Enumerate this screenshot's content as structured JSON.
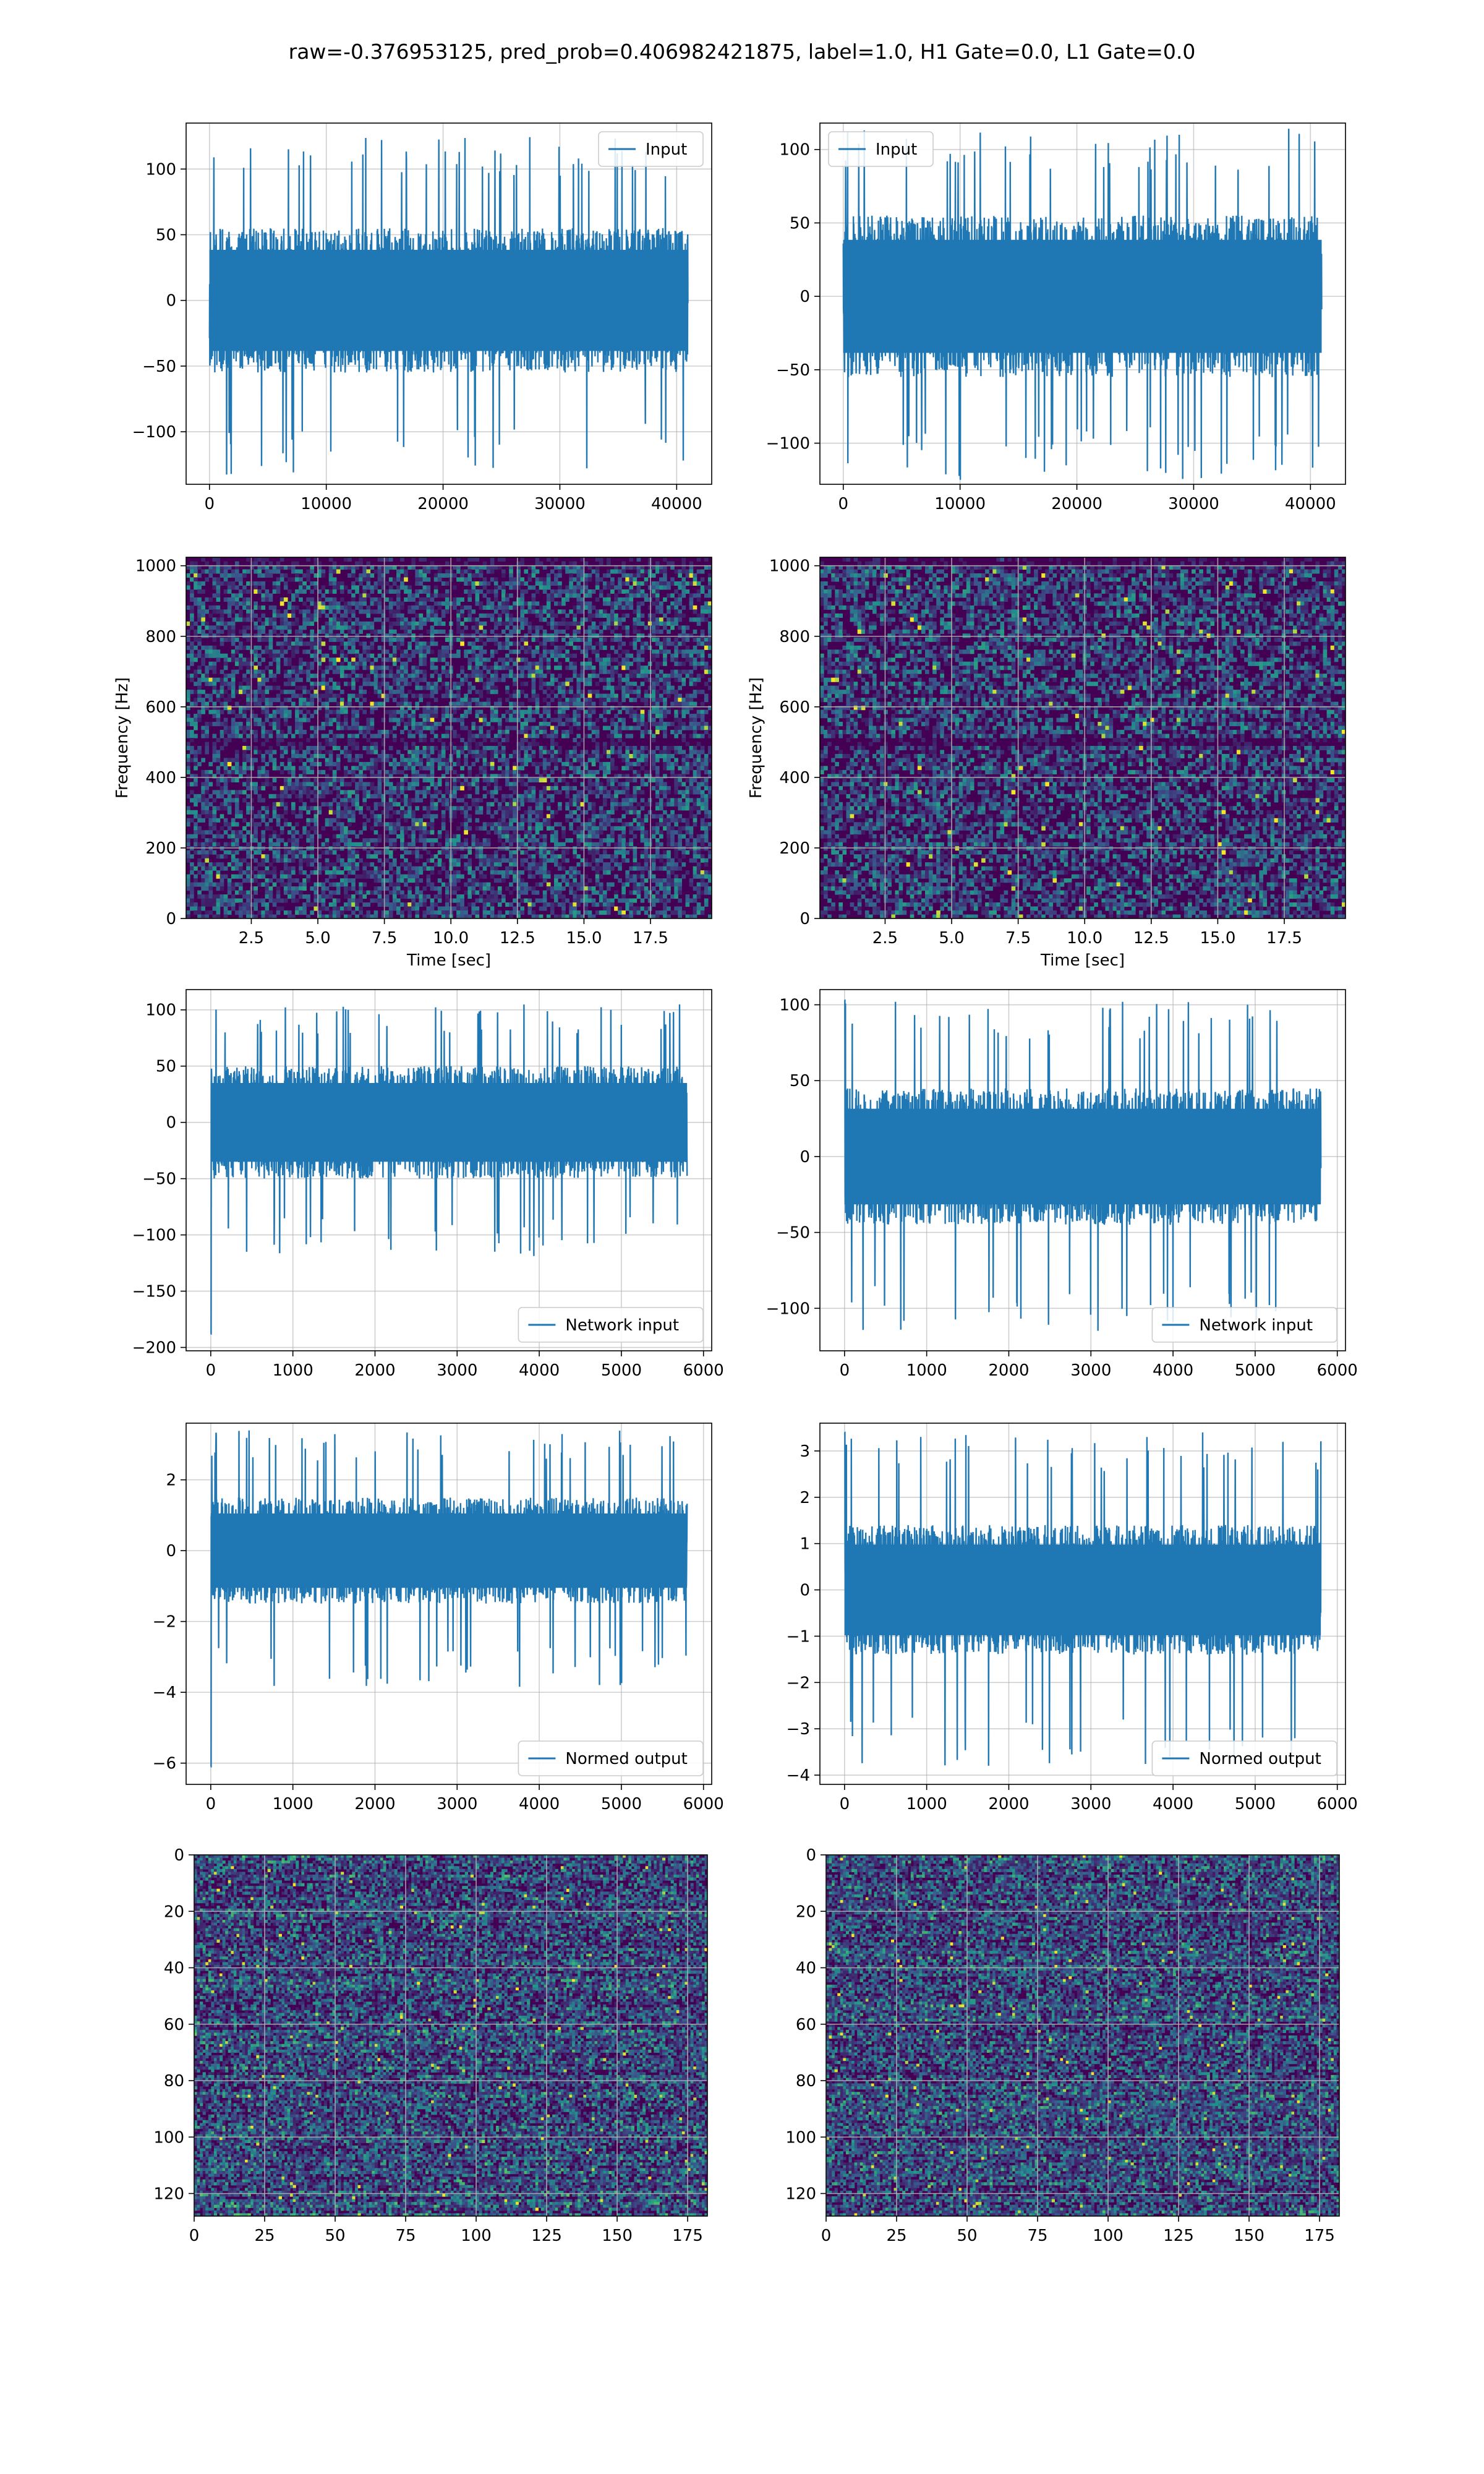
{
  "figure": {
    "title": "raw=-0.376953125, pred_prob=0.406982421875, label=1.0, H1 Gate=0.0, L1 Gate=0.0"
  },
  "colors": {
    "series": "#1f77b4",
    "grid": "#b0b0b0",
    "viridis_dark": "#440154",
    "viridis_mid": "#3b528b",
    "viridis_teal": "#21918c",
    "viridis_light": "#5ec962",
    "viridis_bright": "#fde725"
  },
  "chart_data": [
    {
      "id": "h1-input",
      "type": "line",
      "legend": "Input",
      "legend_loc": "upper right",
      "xlim": [
        -2000,
        43000
      ],
      "ylim": [
        -140,
        135
      ],
      "xticks": [
        0,
        10000,
        20000,
        30000,
        40000
      ],
      "yticks": [
        -100,
        -50,
        0,
        50,
        100
      ],
      "xticklabels": [
        "0",
        "10000",
        "20000",
        "30000",
        "40000"
      ],
      "yticklabels": [
        "−100",
        "−50",
        "0",
        "50",
        "100"
      ],
      "grid": true,
      "xlabel": "",
      "ylabel": "",
      "signal": {
        "x_start": 0,
        "x_end": 40960,
        "body_amplitude": 55,
        "peak_max": 125,
        "peak_min": -133
      }
    },
    {
      "id": "l1-input",
      "type": "line",
      "legend": "Input",
      "legend_loc": "upper left",
      "xlim": [
        -2000,
        43000
      ],
      "ylim": [
        -128,
        118
      ],
      "xticks": [
        0,
        10000,
        20000,
        30000,
        40000
      ],
      "yticks": [
        -100,
        -50,
        0,
        50,
        100
      ],
      "xticklabels": [
        "0",
        "10000",
        "20000",
        "30000",
        "40000"
      ],
      "yticklabels": [
        "−100",
        "−50",
        "0",
        "50",
        "100"
      ],
      "grid": true,
      "xlabel": "",
      "ylabel": "",
      "signal": {
        "x_start": 0,
        "x_end": 40960,
        "body_amplitude": 55,
        "peak_max": 115,
        "peak_min": -125
      }
    },
    {
      "id": "h1-spectrogram",
      "type": "heatmap",
      "xlim": [
        0.05,
        19.8
      ],
      "ylim": [
        0,
        1024
      ],
      "xticks": [
        2.5,
        5.0,
        7.5,
        10.0,
        12.5,
        15.0,
        17.5
      ],
      "yticks": [
        0,
        200,
        400,
        600,
        800,
        1000
      ],
      "xticklabels": [
        "2.5",
        "5.0",
        "7.5",
        "10.0",
        "12.5",
        "15.0",
        "17.5"
      ],
      "yticklabels": [
        "0",
        "200",
        "400",
        "600",
        "800",
        "1000"
      ],
      "grid": true,
      "xlabel": "Time [sec]",
      "ylabel": "Frequency [Hz]",
      "colormap": "viridis",
      "dark_bands_hz": [
        500,
        1010
      ]
    },
    {
      "id": "l1-spectrogram",
      "type": "heatmap",
      "xlim": [
        0.05,
        19.8
      ],
      "ylim": [
        0,
        1024
      ],
      "xticks": [
        2.5,
        5.0,
        7.5,
        10.0,
        12.5,
        15.0,
        17.5
      ],
      "yticks": [
        0,
        200,
        400,
        600,
        800,
        1000
      ],
      "xticklabels": [
        "2.5",
        "5.0",
        "7.5",
        "10.0",
        "12.5",
        "15.0",
        "17.5"
      ],
      "yticklabels": [
        "0",
        "200",
        "400",
        "600",
        "800",
        "1000"
      ],
      "grid": true,
      "xlabel": "Time [sec]",
      "ylabel": "Frequency [Hz]",
      "colormap": "viridis",
      "dark_bands_hz": [
        500,
        1010
      ]
    },
    {
      "id": "h1-network-input",
      "type": "line",
      "legend": "Network input",
      "legend_loc": "lower right",
      "xlim": [
        -300,
        6100
      ],
      "ylim": [
        -203,
        118
      ],
      "xticks": [
        0,
        1000,
        2000,
        3000,
        4000,
        5000,
        6000
      ],
      "yticks": [
        -200,
        -150,
        -100,
        -50,
        0,
        50,
        100
      ],
      "xticklabels": [
        "0",
        "1000",
        "2000",
        "3000",
        "4000",
        "5000",
        "6000"
      ],
      "yticklabels": [
        "−200",
        "−150",
        "−100",
        "−50",
        "0",
        "50",
        "100"
      ],
      "grid": true,
      "xlabel": "",
      "ylabel": "",
      "signal": {
        "x_start": 0,
        "x_end": 5800,
        "body_amplitude": 50,
        "peak_max": 105,
        "peak_min": -120,
        "initial_spike": -188
      }
    },
    {
      "id": "l1-network-input",
      "type": "line",
      "legend": "Network input",
      "legend_loc": "lower right",
      "xlim": [
        -300,
        6100
      ],
      "ylim": [
        -128,
        110
      ],
      "xticks": [
        0,
        1000,
        2000,
        3000,
        4000,
        5000,
        6000
      ],
      "yticks": [
        -100,
        -50,
        0,
        50,
        100
      ],
      "xticklabels": [
        "0",
        "1000",
        "2000",
        "3000",
        "4000",
        "5000",
        "6000"
      ],
      "yticklabels": [
        "−100",
        "−50",
        "0",
        "50",
        "100"
      ],
      "grid": true,
      "xlabel": "",
      "ylabel": "",
      "signal": {
        "x_start": 0,
        "x_end": 5800,
        "body_amplitude": 45,
        "peak_max": 102,
        "peak_min": -118,
        "initial_spike": 103
      }
    },
    {
      "id": "h1-normed-output",
      "type": "line",
      "legend": "Normed output",
      "legend_loc": "lower right",
      "xlim": [
        -300,
        6100
      ],
      "ylim": [
        -6.6,
        3.6
      ],
      "xticks": [
        0,
        1000,
        2000,
        3000,
        4000,
        5000,
        6000
      ],
      "yticks": [
        -6,
        -4,
        -2,
        0,
        2
      ],
      "xticklabels": [
        "0",
        "1000",
        "2000",
        "3000",
        "4000",
        "5000",
        "6000"
      ],
      "yticklabels": [
        "−6",
        "−4",
        "−2",
        "0",
        "2"
      ],
      "grid": true,
      "xlabel": "",
      "ylabel": "",
      "signal": {
        "x_start": 0,
        "x_end": 5800,
        "body_amplitude": 1.5,
        "peak_max": 3.4,
        "peak_min": -3.9,
        "initial_spike": -6.1
      }
    },
    {
      "id": "l1-normed-output",
      "type": "line",
      "legend": "Normed output",
      "legend_loc": "lower right",
      "xlim": [
        -300,
        6100
      ],
      "ylim": [
        -4.2,
        3.6
      ],
      "xticks": [
        0,
        1000,
        2000,
        3000,
        4000,
        5000,
        6000
      ],
      "yticks": [
        -4,
        -3,
        -2,
        -1,
        0,
        1,
        2,
        3
      ],
      "xticklabels": [
        "0",
        "1000",
        "2000",
        "3000",
        "4000",
        "5000",
        "6000"
      ],
      "yticklabels": [
        "−4",
        "−3",
        "−2",
        "−1",
        "0",
        "1",
        "2",
        "3"
      ],
      "grid": true,
      "xlabel": "",
      "ylabel": "",
      "signal": {
        "x_start": 0,
        "x_end": 5800,
        "body_amplitude": 1.4,
        "peak_max": 3.4,
        "peak_min": -3.8,
        "initial_spike": 3.4
      }
    },
    {
      "id": "h1-matrix",
      "type": "heatmap",
      "xlim": [
        0,
        182
      ],
      "ylim": [
        128,
        0
      ],
      "xticks": [
        0,
        25,
        50,
        75,
        100,
        125,
        150,
        175
      ],
      "yticks": [
        0,
        20,
        40,
        60,
        80,
        100,
        120
      ],
      "xticklabels": [
        "0",
        "25",
        "50",
        "75",
        "100",
        "125",
        "150",
        "175"
      ],
      "yticklabels": [
        "0",
        "20",
        "40",
        "60",
        "80",
        "100",
        "120"
      ],
      "grid": true,
      "xlabel": "",
      "ylabel": "",
      "colormap": "viridis",
      "grid_size": [
        182,
        128
      ]
    },
    {
      "id": "l1-matrix",
      "type": "heatmap",
      "xlim": [
        0,
        182
      ],
      "ylim": [
        128,
        0
      ],
      "xticks": [
        0,
        25,
        50,
        75,
        100,
        125,
        150,
        175
      ],
      "yticks": [
        0,
        20,
        40,
        60,
        80,
        100,
        120
      ],
      "xticklabels": [
        "0",
        "25",
        "50",
        "75",
        "100",
        "125",
        "150",
        "175"
      ],
      "yticklabels": [
        "0",
        "20",
        "40",
        "60",
        "80",
        "100",
        "120"
      ],
      "grid": true,
      "xlabel": "",
      "ylabel": "",
      "colormap": "viridis",
      "grid_size": [
        182,
        128
      ]
    }
  ]
}
